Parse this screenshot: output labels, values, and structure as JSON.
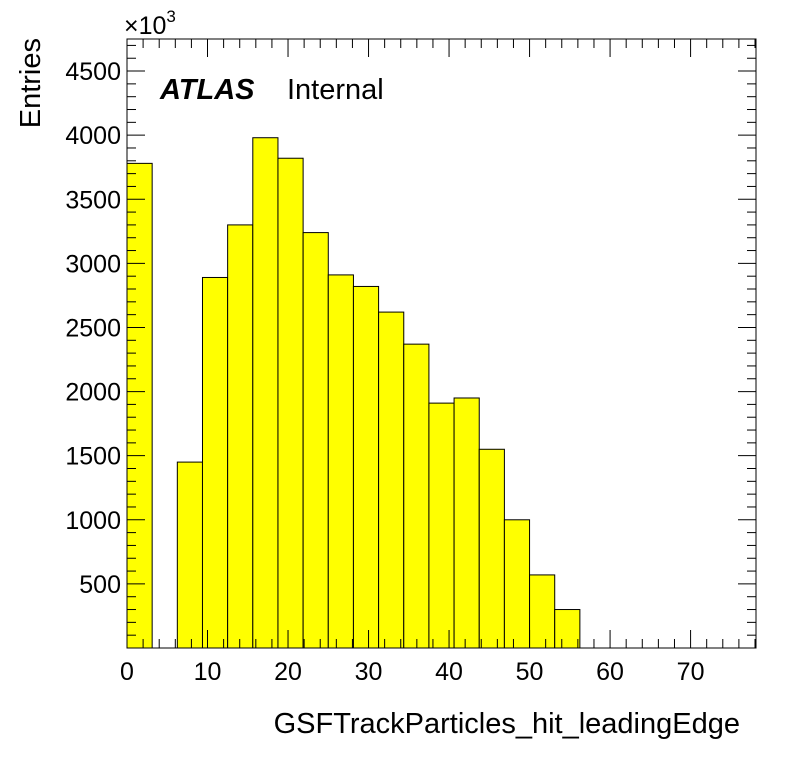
{
  "chart_data": {
    "type": "bar",
    "style": "histogram",
    "fill_color": "#ffff00",
    "edge_color": "#000000",
    "xlabel": "GSFTrackParticles_hit_leadingEdge",
    "ylabel": "Entries",
    "y_multiplier_label": "×10",
    "y_multiplier_exponent": "3",
    "xlim": [
      0,
      78.125
    ],
    "ylim": [
      0,
      4750
    ],
    "bin_width": 3.125,
    "bin_edges_start": 0,
    "values": [
      3780,
      0,
      1450,
      2890,
      3300,
      3980,
      3820,
      3240,
      2910,
      2820,
      2620,
      2370,
      1910,
      1950,
      1550,
      1000,
      570,
      300,
      0,
      0,
      0,
      0,
      0,
      0,
      0
    ],
    "x_ticks": [
      0,
      10,
      20,
      30,
      40,
      50,
      60,
      70
    ],
    "x_tick_labels": [
      "0",
      "10",
      "20",
      "30",
      "40",
      "50",
      "60",
      "70"
    ],
    "y_ticks": [
      500,
      1000,
      1500,
      2000,
      2500,
      3000,
      3500,
      4000,
      4500
    ],
    "y_tick_labels": [
      "500",
      "1000",
      "1500",
      "2000",
      "2500",
      "3000",
      "3500",
      "4000",
      "4500"
    ],
    "annotation": {
      "experiment": "ATLAS",
      "status": "Internal"
    },
    "grid": false,
    "legend": "none"
  }
}
